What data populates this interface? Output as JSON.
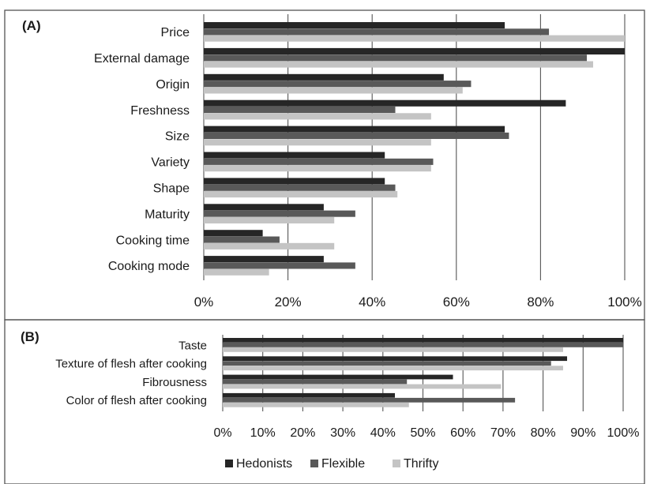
{
  "colors": {
    "Hedonists": "#262626",
    "Flexible": "#595959",
    "Thrifty": "#c4c4c4",
    "grid": "#555555",
    "frame": "#555555"
  },
  "legend": {
    "items": [
      "Hedonists",
      "Flexible",
      "Thrifty"
    ],
    "placement": "bottom"
  },
  "chart_data": [
    {
      "type": "bar",
      "orientation": "horizontal",
      "panel_label": "(A)",
      "categories": [
        "Price",
        "External damage",
        "Origin",
        "Freshness",
        "Size",
        "Variety",
        "Shape",
        "Maturity",
        "Cooking time",
        "Cooking mode"
      ],
      "series": [
        {
          "name": "Hedonists",
          "values": [
            71.5,
            100,
            57,
            86,
            71.5,
            43,
            43,
            28.5,
            14,
            28.5
          ]
        },
        {
          "name": "Flexible",
          "values": [
            82,
            91,
            63.5,
            45.5,
            72.5,
            54.5,
            45.5,
            36,
            18,
            36
          ]
        },
        {
          "name": "Thrifty",
          "values": [
            100,
            92.5,
            61.5,
            54,
            54,
            54,
            46,
            31,
            31,
            15.5
          ]
        }
      ],
      "xlim": [
        0,
        100
      ],
      "ticks": [
        "0%",
        "20%",
        "40%",
        "60%",
        "80%",
        "100%"
      ],
      "grid": true
    },
    {
      "type": "bar",
      "orientation": "horizontal",
      "panel_label": "(B)",
      "categories": [
        "Taste",
        "Texture of flesh after cooking",
        "Fibrousness",
        "Color of flesh after cooking"
      ],
      "series": [
        {
          "name": "Hedonists",
          "values": [
            100,
            86,
            57.5,
            43
          ]
        },
        {
          "name": "Flexible",
          "values": [
            100,
            82,
            46,
            73
          ]
        },
        {
          "name": "Thrifty",
          "values": [
            85,
            85,
            69.5,
            46.5
          ]
        }
      ],
      "xlim": [
        0,
        100
      ],
      "ticks": [
        "0%",
        "10%",
        "20%",
        "30%",
        "40%",
        "50%",
        "60%",
        "70%",
        "80%",
        "90%",
        "100%"
      ],
      "grid": true
    }
  ]
}
